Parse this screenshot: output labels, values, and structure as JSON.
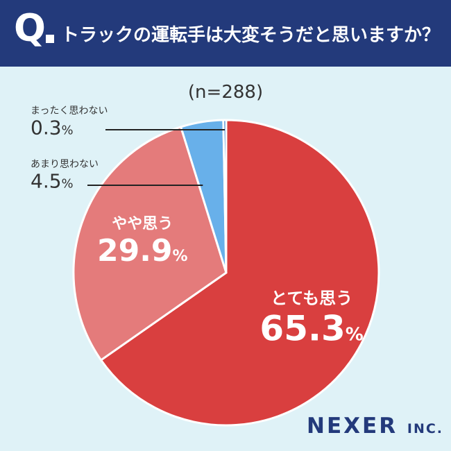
{
  "header": {
    "q_label": "Q",
    "question": "トラックの運転手は大変そうだと思いますか？"
  },
  "sample_size": "(n=288)",
  "brand": {
    "name": "NEXER",
    "suffix": "INC."
  },
  "chart_data": {
    "type": "pie",
    "title": "トラックの運転手は大変そうだと思いますか？",
    "categories": [
      "とても思う",
      "やや思う",
      "あまり思わない",
      "まったく思わない"
    ],
    "values": [
      65.3,
      29.9,
      4.5,
      0.3
    ],
    "value_labels": [
      "65.3",
      "29.9",
      "4.5",
      "0.3"
    ],
    "unit": "%",
    "direction": "clockwise from top",
    "colors": [
      "#d93f3f",
      "#e47b7b",
      "#68b0ea",
      "#1f6fc4"
    ],
    "label_colors": {
      "inside": "#ffffff",
      "outside": "#333333"
    }
  }
}
